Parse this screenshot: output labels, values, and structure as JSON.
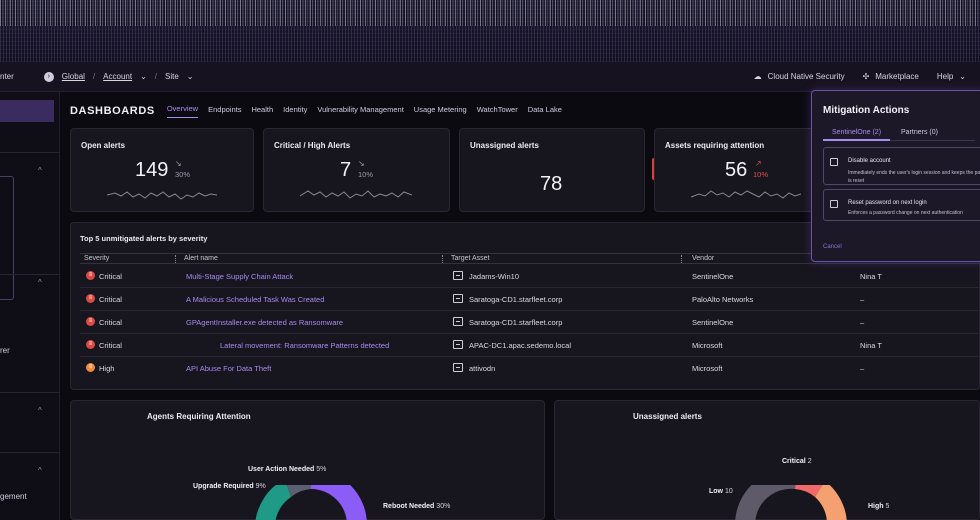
{
  "topbar": {
    "left_partial": "nter",
    "global": "Global",
    "account": "Account",
    "site": "Site",
    "cloud": "Cloud Native Security",
    "marketplace": "Marketplace",
    "help": "Help"
  },
  "sidebar": {
    "partial_text_1": "rer",
    "partial_text_2": "gement"
  },
  "dashboard": {
    "title": "DASHBOARDS",
    "tabs": [
      "Overview",
      "Endpoints",
      "Health",
      "Identity",
      "Vulnerability Management",
      "Usage Metering",
      "WatchTower",
      "Data Lake"
    ]
  },
  "cards": {
    "open": {
      "title": "Open alerts",
      "value": "149",
      "delta": "30%"
    },
    "critical": {
      "title": "Critical / High Alerts",
      "value": "7",
      "delta": "10%"
    },
    "unassigned": {
      "title": "Unassigned alerts",
      "value": "78"
    },
    "assets": {
      "title": "Assets requiring attention",
      "value": "56",
      "delta": "10%"
    }
  },
  "table": {
    "title": "Top 5 unmitigated alerts by severity",
    "headers": {
      "severity": "Severity",
      "alert": "Alert name",
      "asset": "Target Asset",
      "vendor": "Vendor"
    },
    "rows": [
      {
        "severity": "Critical",
        "alert": "Multi-Stage Supply Chain Attack",
        "asset": "Jadams-Win10",
        "vendor": "SentinelOne",
        "assignee": "Nina T"
      },
      {
        "severity": "Critical",
        "alert": "A Malicious Scheduled Task Was Created",
        "asset": "Saratoga-CD1.starfleet.corp",
        "vendor": "PaloAlto Networks",
        "assignee": "–"
      },
      {
        "severity": "Critical",
        "alert": "GPAgentInstaller.exe detected as Ransomware",
        "asset": "Saratoga-CD1.starfleet.corp",
        "vendor": "SentinelOne",
        "assignee": "–"
      },
      {
        "severity": "Critical",
        "alert": "Lateral movement: Ransomware Patterns detected",
        "asset": "APAC-DC1.apac.sedemo.local",
        "vendor": "Microsoft",
        "assignee": "Nina T"
      },
      {
        "severity": "High",
        "alert": "API Abuse For Data Theft",
        "asset": "attivodn",
        "vendor": "Microsoft",
        "assignee": "–"
      }
    ]
  },
  "panels": {
    "agents": {
      "title": "Agents Requiring Attention",
      "labels": [
        {
          "name": "User Action Needed",
          "value": "5%"
        },
        {
          "name": "Upgrade Required",
          "value": "9%"
        },
        {
          "name": "Reboot Needed",
          "value": "30%"
        }
      ]
    },
    "unassigned": {
      "title": "Unassigned alerts",
      "labels": [
        {
          "name": "Critical",
          "value": "2"
        },
        {
          "name": "Low",
          "value": "10"
        },
        {
          "name": "High",
          "value": "5"
        }
      ]
    }
  },
  "mitigation": {
    "title": "Mitigation Actions",
    "tab1": "SentinelOne (2)",
    "tab2": "Partners (0)",
    "options": [
      {
        "title": "Disable account",
        "desc": "Immediately ends the user's login session and keeps the password is reset"
      },
      {
        "title": "Reset password on next login",
        "desc": "Enforces a password change on next authentication"
      }
    ],
    "cancel": "Cancel"
  },
  "colors": {
    "accent": "#a88cf0",
    "critical": "#e0524a",
    "high": "#f08a3c",
    "sev_red": "#d84a44"
  }
}
